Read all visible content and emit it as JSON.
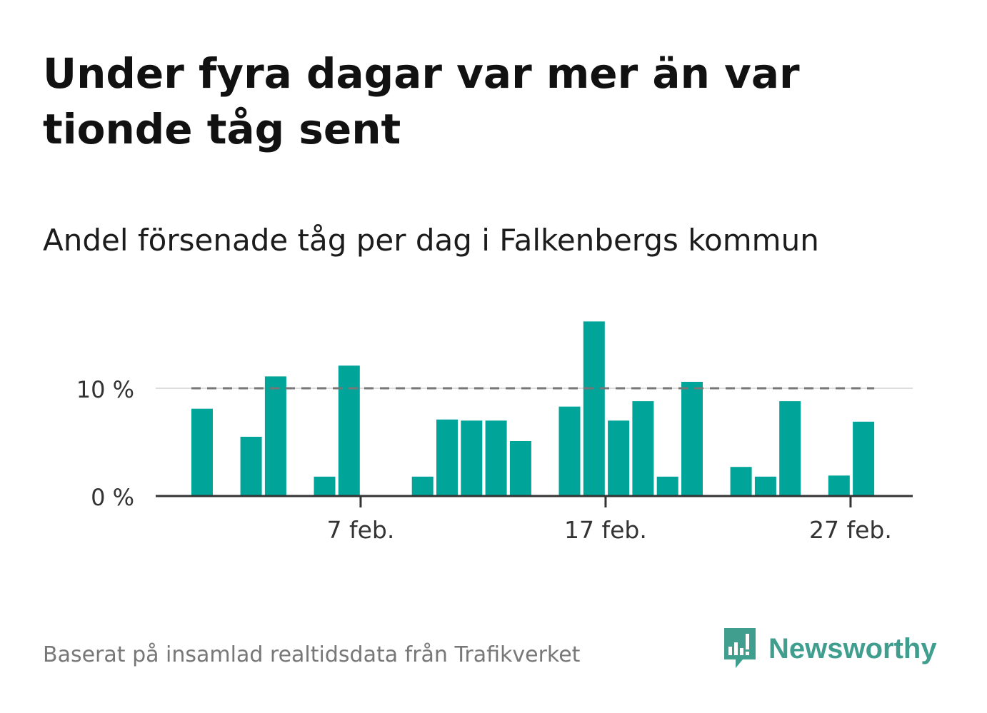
{
  "title": "Under fyra dagar var mer än var tionde tåg sent",
  "subtitle": "Andel försenade tåg per dag i Falkenbergs kommun",
  "footer": {
    "source": "Baserat på insamlad realtidsdata från Trafikverket",
    "brand": "Newsworthy"
  },
  "colors": {
    "bar": "#00a499",
    "reference": "#777777",
    "brand": "#3f9e8e"
  },
  "chart_data": {
    "type": "bar",
    "x": [
      1,
      2,
      3,
      4,
      5,
      6,
      7,
      8,
      9,
      10,
      11,
      12,
      13,
      14,
      15,
      16,
      17,
      18,
      19,
      20,
      21,
      22,
      23,
      24,
      25,
      26,
      27,
      28,
      29
    ],
    "x_unit": "day of February",
    "values": [
      8.1,
      0,
      5.5,
      11.1,
      0,
      1.8,
      12.1,
      0,
      0,
      1.8,
      7.1,
      7.0,
      7.0,
      5.1,
      0,
      8.3,
      16.2,
      7.0,
      8.8,
      1.8,
      10.6,
      0,
      2.7,
      1.8,
      8.8,
      0,
      1.9,
      6.9,
      0
    ],
    "ylim": [
      0,
      17
    ],
    "yticks": [
      0,
      10
    ],
    "ytick_labels": [
      "0 %",
      "10 %"
    ],
    "xticks": [
      7,
      17,
      27
    ],
    "xtick_labels": [
      "7 feb.",
      "17 feb.",
      "27 feb."
    ],
    "reference_line": {
      "value": 10,
      "from": 1,
      "to": 28,
      "style": "dashed"
    },
    "grid": "horizontal"
  }
}
